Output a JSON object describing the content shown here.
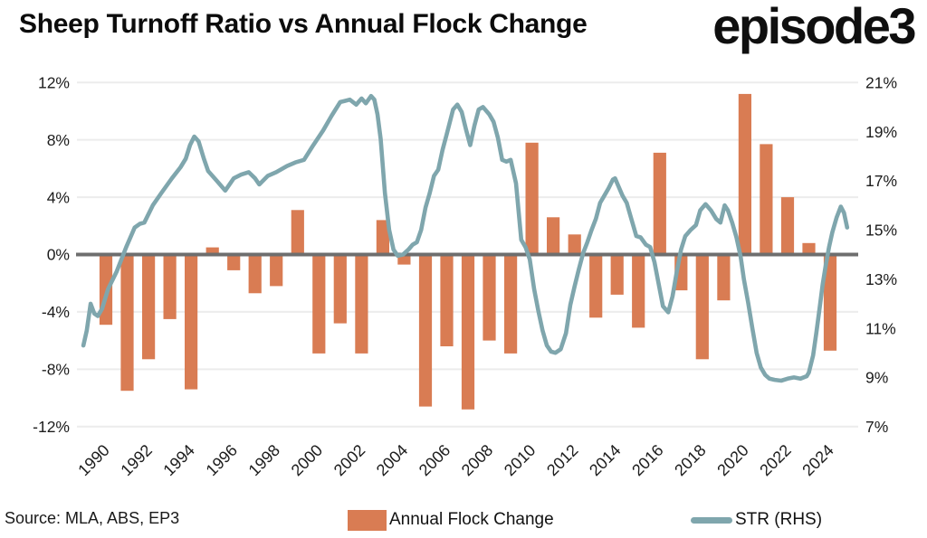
{
  "title": "Sheep Turnoff Ratio vs Annual Flock Change",
  "logo": "episode3",
  "source": "Source: MLA, ABS, EP3",
  "colors": {
    "bar": "#d97c53",
    "line": "#7fa6ad",
    "zero_line": "#6e6e6e",
    "gridline": "#ececec",
    "text": "#1c1c1c",
    "background": "#ffffff"
  },
  "legend": [
    {
      "label": "Annual Flock Change",
      "type": "bar",
      "color": "#d97c53"
    },
    {
      "label": "STR (RHS)",
      "type": "line",
      "color": "#7fa6ad"
    }
  ],
  "chart_data": {
    "type": "combo",
    "title": "Sheep Turnoff Ratio vs Annual Flock Change",
    "grid": true,
    "left_axis": {
      "tick_labels": [
        "12%",
        "8%",
        "4%",
        "0%",
        "-4%",
        "-8%",
        "-12%"
      ],
      "tick_values": [
        12,
        8,
        4,
        0,
        -4,
        -8,
        -12
      ],
      "range": [
        -12,
        12
      ]
    },
    "right_axis": {
      "tick_labels": [
        "21%",
        "19%",
        "17%",
        "15%",
        "13%",
        "11%",
        "9%",
        "7%"
      ],
      "tick_values": [
        21,
        19,
        17,
        15,
        13,
        11,
        9,
        7
      ],
      "range": [
        7,
        21
      ]
    },
    "x_axis": {
      "tick_labels": [
        "1990",
        "1992",
        "1994",
        "1996",
        "1998",
        "2000",
        "2002",
        "2004",
        "2006",
        "2008",
        "2010",
        "2012",
        "2014",
        "2016",
        "2018",
        "2020",
        "2022",
        "2024"
      ]
    },
    "series": [
      {
        "name": "Annual Flock Change",
        "type": "bar",
        "axis": "left",
        "color": "#d97c53",
        "years": [
          1990,
          1991,
          1992,
          1993,
          1994,
          1995,
          1996,
          1997,
          1998,
          1999,
          2000,
          2001,
          2002,
          2003,
          2004,
          2005,
          2006,
          2007,
          2008,
          2009,
          2010,
          2011,
          2012,
          2013,
          2014,
          2015,
          2016,
          2017,
          2018,
          2019,
          2020,
          2021,
          2022,
          2023,
          2024
        ],
        "values": [
          -4.9,
          -9.5,
          -7.3,
          -4.5,
          -9.4,
          0.5,
          -1.1,
          -2.7,
          -2.2,
          3.1,
          -6.9,
          -4.8,
          -6.9,
          2.4,
          -0.7,
          -10.6,
          -6.4,
          -10.8,
          -6.0,
          -6.9,
          7.8,
          2.6,
          1.4,
          -4.4,
          -2.8,
          -5.1,
          7.1,
          -2.5,
          -7.3,
          -3.2,
          11.2,
          7.7,
          4.0,
          0.8,
          -6.7
        ]
      },
      {
        "name": "STR (RHS)",
        "type": "line",
        "axis": "right",
        "color": "#7fa6ad",
        "points": [
          [
            1988.94,
            10.3
          ],
          [
            1989.1,
            10.9
          ],
          [
            1989.28,
            12.0
          ],
          [
            1989.45,
            11.6
          ],
          [
            1989.62,
            11.5
          ],
          [
            1989.82,
            11.8
          ],
          [
            1990.1,
            12.6
          ],
          [
            1990.5,
            13.3
          ],
          [
            1990.95,
            14.3
          ],
          [
            1991.35,
            15.1
          ],
          [
            1991.6,
            15.25
          ],
          [
            1991.8,
            15.3
          ],
          [
            1992.2,
            16.0
          ],
          [
            1992.6,
            16.5
          ],
          [
            1993.1,
            17.1
          ],
          [
            1993.5,
            17.55
          ],
          [
            1993.75,
            17.9
          ],
          [
            1993.95,
            18.45
          ],
          [
            1994.15,
            18.8
          ],
          [
            1994.35,
            18.6
          ],
          [
            1994.6,
            17.9
          ],
          [
            1994.8,
            17.4
          ],
          [
            1995.2,
            17.0
          ],
          [
            1995.6,
            16.6
          ],
          [
            1996.0,
            17.1
          ],
          [
            1996.35,
            17.25
          ],
          [
            1996.7,
            17.35
          ],
          [
            1997.0,
            17.1
          ],
          [
            1997.2,
            16.85
          ],
          [
            1997.6,
            17.2
          ],
          [
            1998.0,
            17.35
          ],
          [
            1998.5,
            17.6
          ],
          [
            1998.9,
            17.75
          ],
          [
            1999.3,
            17.85
          ],
          [
            1999.7,
            18.4
          ],
          [
            2000.2,
            19.05
          ],
          [
            2000.6,
            19.65
          ],
          [
            2001.0,
            20.2
          ],
          [
            2001.45,
            20.3
          ],
          [
            2001.75,
            20.1
          ],
          [
            2002.0,
            20.35
          ],
          [
            2002.2,
            20.15
          ],
          [
            2002.45,
            20.45
          ],
          [
            2002.6,
            20.3
          ],
          [
            2002.75,
            19.7
          ],
          [
            2002.9,
            18.7
          ],
          [
            2003.1,
            16.5
          ],
          [
            2003.3,
            15.0
          ],
          [
            2003.5,
            14.2
          ],
          [
            2003.7,
            13.95
          ],
          [
            2003.95,
            14.0
          ],
          [
            2004.2,
            14.2
          ],
          [
            2004.4,
            14.4
          ],
          [
            2004.6,
            14.5
          ],
          [
            2004.8,
            15.0
          ],
          [
            2005.0,
            15.9
          ],
          [
            2005.2,
            16.5
          ],
          [
            2005.4,
            17.2
          ],
          [
            2005.6,
            17.45
          ],
          [
            2005.8,
            18.25
          ],
          [
            2006.0,
            18.9
          ],
          [
            2006.3,
            19.9
          ],
          [
            2006.5,
            20.1
          ],
          [
            2006.7,
            19.8
          ],
          [
            2006.9,
            19.1
          ],
          [
            2007.1,
            18.45
          ],
          [
            2007.3,
            19.25
          ],
          [
            2007.5,
            19.9
          ],
          [
            2007.7,
            20.0
          ],
          [
            2008.0,
            19.7
          ],
          [
            2008.2,
            19.4
          ],
          [
            2008.4,
            18.75
          ],
          [
            2008.6,
            17.85
          ],
          [
            2008.8,
            17.78
          ],
          [
            2009.0,
            17.85
          ],
          [
            2009.25,
            16.9
          ],
          [
            2009.5,
            14.6
          ],
          [
            2009.7,
            14.3
          ],
          [
            2009.9,
            13.8
          ],
          [
            2010.1,
            12.6
          ],
          [
            2010.3,
            11.7
          ],
          [
            2010.5,
            10.9
          ],
          [
            2010.7,
            10.3
          ],
          [
            2010.9,
            10.05
          ],
          [
            2011.1,
            10.0
          ],
          [
            2011.35,
            10.15
          ],
          [
            2011.6,
            10.8
          ],
          [
            2011.8,
            11.95
          ],
          [
            2012.0,
            12.7
          ],
          [
            2012.2,
            13.4
          ],
          [
            2012.4,
            14.05
          ],
          [
            2012.6,
            14.5
          ],
          [
            2012.8,
            15.0
          ],
          [
            2013.0,
            15.45
          ],
          [
            2013.2,
            16.1
          ],
          [
            2013.4,
            16.4
          ],
          [
            2013.6,
            16.7
          ],
          [
            2013.8,
            17.05
          ],
          [
            2013.9,
            17.1
          ],
          [
            2014.05,
            16.8
          ],
          [
            2014.25,
            16.4
          ],
          [
            2014.45,
            16.1
          ],
          [
            2014.65,
            15.5
          ],
          [
            2014.9,
            14.75
          ],
          [
            2015.1,
            14.7
          ],
          [
            2015.35,
            14.4
          ],
          [
            2015.55,
            14.3
          ],
          [
            2015.75,
            13.7
          ],
          [
            2015.95,
            12.8
          ],
          [
            2016.15,
            11.9
          ],
          [
            2016.4,
            11.65
          ],
          [
            2016.6,
            12.3
          ],
          [
            2016.8,
            13.3
          ],
          [
            2017.0,
            14.2
          ],
          [
            2017.2,
            14.75
          ],
          [
            2017.45,
            15.0
          ],
          [
            2017.7,
            15.2
          ],
          [
            2017.9,
            15.8
          ],
          [
            2018.15,
            16.05
          ],
          [
            2018.4,
            15.8
          ],
          [
            2018.65,
            15.45
          ],
          [
            2018.85,
            15.3
          ],
          [
            2019.05,
            16.0
          ],
          [
            2019.2,
            15.8
          ],
          [
            2019.4,
            15.3
          ],
          [
            2019.6,
            14.7
          ],
          [
            2019.8,
            13.9
          ],
          [
            2019.95,
            13.0
          ],
          [
            2020.15,
            12.05
          ],
          [
            2020.35,
            11.0
          ],
          [
            2020.55,
            10.0
          ],
          [
            2020.75,
            9.4
          ],
          [
            2020.95,
            9.1
          ],
          [
            2021.15,
            8.95
          ],
          [
            2021.4,
            8.9
          ],
          [
            2021.7,
            8.87
          ],
          [
            2022.0,
            8.95
          ],
          [
            2022.3,
            9.0
          ],
          [
            2022.6,
            8.95
          ],
          [
            2022.9,
            9.05
          ],
          [
            2023.0,
            9.2
          ],
          [
            2023.2,
            9.9
          ],
          [
            2023.35,
            10.8
          ],
          [
            2023.5,
            11.8
          ],
          [
            2023.65,
            12.8
          ],
          [
            2023.8,
            13.6
          ],
          [
            2023.95,
            14.3
          ],
          [
            2024.1,
            14.9
          ],
          [
            2024.3,
            15.5
          ],
          [
            2024.5,
            15.95
          ],
          [
            2024.65,
            15.7
          ],
          [
            2024.8,
            15.1
          ]
        ]
      }
    ]
  }
}
